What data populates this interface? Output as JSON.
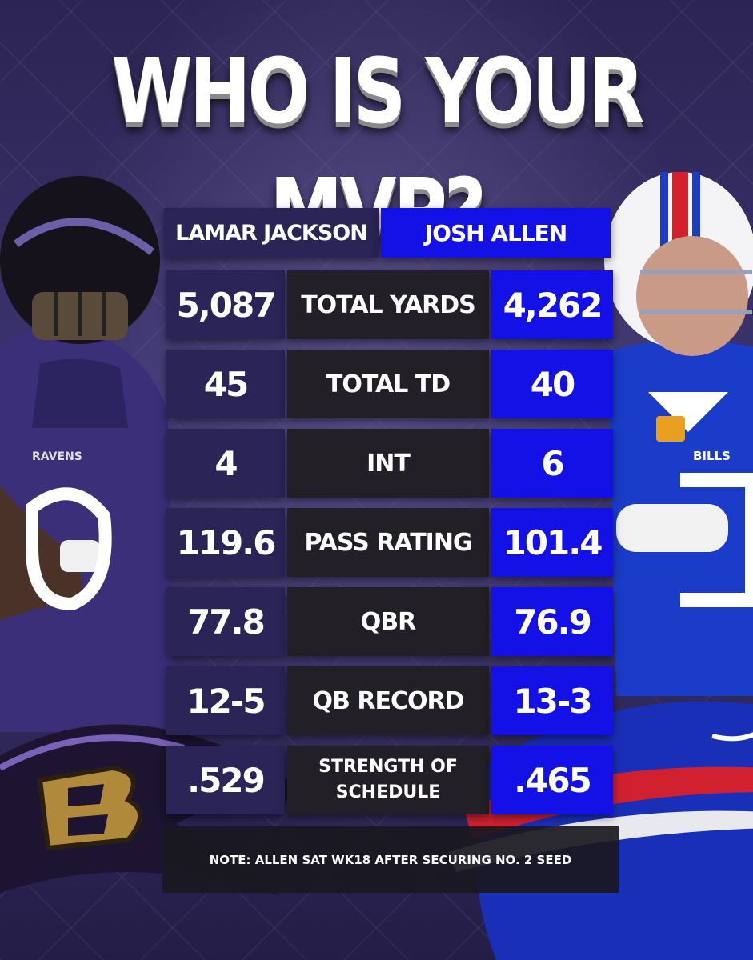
{
  "title": "WHO IS YOUR MVP?",
  "players": {
    "left": "LAMAR JACKSON",
    "right": "JOSH ALLEN"
  },
  "stats": [
    {
      "label": "TOTAL YARDS",
      "left": "5,087",
      "right": "4,262"
    },
    {
      "label": "TOTAL TD",
      "left": "45",
      "right": "40"
    },
    {
      "label": "INT",
      "left": "4",
      "right": "6"
    },
    {
      "label": "PASS RATING",
      "left": "119.6",
      "right": "101.4"
    },
    {
      "label": "QBR",
      "left": "77.8",
      "right": "76.9"
    },
    {
      "label": "QB RECORD",
      "left": "12-5",
      "right": "13-3"
    },
    {
      "label_line1": "STRENGTH OF",
      "label_line2": "SCHEDULE",
      "left": ".529",
      "right": ".465"
    }
  ],
  "note": "NOTE: ALLEN SAT WK18 AFTER SECURING NO. 2 SEED",
  "jersey_text": {
    "ravens": "RAVENS",
    "bills": "BILLS"
  },
  "colors": {
    "ravens_purple": "#2a2457",
    "bills_blue": "#1311e6",
    "label_dark": "#222026"
  }
}
